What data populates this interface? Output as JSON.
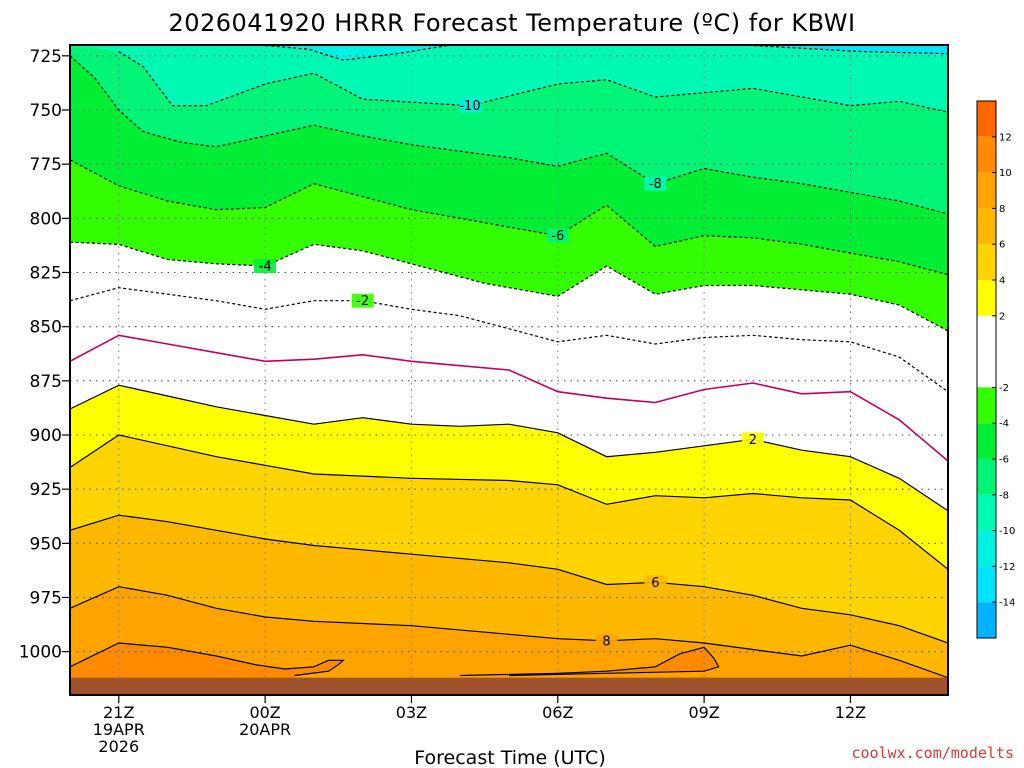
{
  "chart_data": {
    "type": "heatmap",
    "title": "2026041920 HRRR Forecast Temperature (ºC) for KBWI",
    "xlabel": "Forecast Time (UTC)",
    "ylabel": "",
    "credit": "coolwx.com/modelts",
    "x_range_hours": [
      -1,
      17
    ],
    "y_range_hpa": [
      720,
      1020
    ],
    "x_ticks": [
      {
        "hour": 0,
        "lines": [
          "21Z",
          "19APR",
          "2026"
        ]
      },
      {
        "hour": 3,
        "lines": [
          "00Z",
          "20APR"
        ]
      },
      {
        "hour": 6,
        "lines": [
          "03Z"
        ]
      },
      {
        "hour": 9,
        "lines": [
          "06Z"
        ]
      },
      {
        "hour": 12,
        "lines": [
          "09Z"
        ]
      },
      {
        "hour": 15,
        "lines": [
          "12Z"
        ]
      }
    ],
    "y_ticks": [
      725,
      750,
      775,
      800,
      825,
      850,
      875,
      900,
      925,
      950,
      975,
      1000
    ],
    "colorbar_ticks": [
      12,
      10,
      8,
      6,
      4,
      2,
      -2,
      -4,
      -6,
      -8,
      -10,
      -12,
      -14
    ],
    "colorbar_bands": [
      {
        "from": 12,
        "to": 14,
        "color": "#ff6600"
      },
      {
        "from": 10,
        "to": 12,
        "color": "#ff8a00"
      },
      {
        "from": 8,
        "to": 10,
        "color": "#ffa300"
      },
      {
        "from": 6,
        "to": 8,
        "color": "#ffb800"
      },
      {
        "from": 4,
        "to": 6,
        "color": "#ffd400"
      },
      {
        "from": 2,
        "to": 4,
        "color": "#ffff00"
      },
      {
        "from": -2,
        "to": 2,
        "color": "#ffffff"
      },
      {
        "from": -4,
        "to": -2,
        "color": "#33ff00"
      },
      {
        "from": -6,
        "to": -4,
        "color": "#00ee33"
      },
      {
        "from": -8,
        "to": -6,
        "color": "#00f577"
      },
      {
        "from": -10,
        "to": -8,
        "color": "#00fab4"
      },
      {
        "from": -12,
        "to": -10,
        "color": "#00f0e1"
      },
      {
        "from": -14,
        "to": -12,
        "color": "#00e4ff"
      },
      {
        "from": -16,
        "to": -14,
        "color": "#00b4ff"
      }
    ],
    "ground_color": "#a0522d",
    "surface_pressure_hpa": 1012,
    "series": [
      {
        "name": "-12 isotherm",
        "level": -12,
        "style": "dashed",
        "color": "#000000",
        "label": "",
        "points": [
          [
            2.9,
            720
          ],
          [
            3.9,
            722
          ],
          [
            4.6,
            727
          ],
          [
            5.7,
            724
          ],
          [
            6.8,
            720
          ]
        ]
      },
      {
        "name": "-14 isotherm",
        "level": -14,
        "style": "dashed",
        "color": "#000000",
        "label": "",
        "points": [
          [
            12.8,
            720
          ],
          [
            15.2,
            723
          ],
          [
            17,
            724
          ]
        ]
      },
      {
        "name": "-10 isotherm",
        "level": -10,
        "style": "dashed",
        "color": "#000000",
        "label": "-10",
        "label_at": [
          7.2,
          748
        ],
        "points": [
          [
            0,
            723
          ],
          [
            0.5,
            730
          ],
          [
            1.1,
            748
          ],
          [
            1.8,
            748
          ],
          [
            3,
            738
          ],
          [
            4,
            733
          ],
          [
            5,
            745
          ],
          [
            7.2,
            748
          ],
          [
            9,
            738
          ],
          [
            10,
            736
          ],
          [
            11,
            744
          ],
          [
            12,
            742
          ],
          [
            13,
            740
          ],
          [
            14,
            744
          ],
          [
            15,
            748
          ],
          [
            16,
            746
          ],
          [
            17,
            751
          ]
        ]
      },
      {
        "name": "-8 isotherm",
        "level": -8,
        "style": "dashed",
        "color": "#000000",
        "label": "-8",
        "label_at": [
          11,
          784
        ],
        "points": [
          [
            -1,
            725
          ],
          [
            -0.5,
            735
          ],
          [
            0,
            750
          ],
          [
            0.5,
            760
          ],
          [
            1.3,
            765
          ],
          [
            2,
            767
          ],
          [
            3,
            762
          ],
          [
            4,
            757
          ],
          [
            5,
            762
          ],
          [
            6,
            766
          ],
          [
            8,
            772
          ],
          [
            9,
            776
          ],
          [
            10,
            770
          ],
          [
            11,
            784
          ],
          [
            12,
            777
          ],
          [
            13,
            781
          ],
          [
            14,
            784
          ],
          [
            15,
            788
          ],
          [
            16,
            792
          ],
          [
            17,
            798
          ]
        ]
      },
      {
        "name": "-6 isotherm",
        "level": -6,
        "style": "dashed",
        "color": "#000000",
        "label": "-6",
        "label_at": [
          9,
          808
        ],
        "points": [
          [
            -1,
            773
          ],
          [
            0,
            785
          ],
          [
            1,
            792
          ],
          [
            2,
            796
          ],
          [
            3,
            795
          ],
          [
            4,
            784
          ],
          [
            5,
            790
          ],
          [
            6,
            796
          ],
          [
            7.5,
            802
          ],
          [
            9,
            808
          ],
          [
            10,
            794
          ],
          [
            11,
            813
          ],
          [
            12,
            808
          ],
          [
            13,
            809
          ],
          [
            14,
            812
          ],
          [
            15,
            816
          ],
          [
            16,
            820
          ],
          [
            17,
            826
          ]
        ]
      },
      {
        "name": "-4 isotherm",
        "level": -4,
        "style": "dashed",
        "color": "#000000",
        "label": "-4",
        "label_at": [
          3,
          822
        ],
        "points": [
          [
            -1,
            811
          ],
          [
            0,
            812
          ],
          [
            1,
            819
          ],
          [
            2,
            821
          ],
          [
            3,
            822
          ],
          [
            4,
            812
          ],
          [
            5,
            815
          ],
          [
            6,
            821
          ],
          [
            7.5,
            830
          ],
          [
            9,
            836
          ],
          [
            10,
            822
          ],
          [
            11,
            835
          ],
          [
            12,
            831
          ],
          [
            13,
            831
          ],
          [
            14,
            833
          ],
          [
            15,
            835
          ],
          [
            16,
            840
          ],
          [
            17,
            852
          ]
        ]
      },
      {
        "name": "-2 isotherm",
        "level": -2,
        "style": "dashed",
        "color": "#000000",
        "label": "-2",
        "label_at": [
          5,
          838
        ],
        "points": [
          [
            -1,
            838
          ],
          [
            0,
            832
          ],
          [
            1,
            835
          ],
          [
            2,
            838
          ],
          [
            3,
            842
          ],
          [
            4,
            838
          ],
          [
            5,
            838
          ],
          [
            6,
            842
          ],
          [
            7,
            845
          ],
          [
            8,
            851
          ],
          [
            9,
            857
          ],
          [
            10,
            854
          ],
          [
            11,
            858
          ],
          [
            12,
            855
          ],
          [
            13,
            854
          ],
          [
            14,
            856
          ],
          [
            15,
            857
          ],
          [
            16,
            864
          ],
          [
            17,
            880
          ]
        ]
      },
      {
        "name": "0 isotherm",
        "level": 0,
        "style": "solid",
        "color": "#c00060",
        "label": "",
        "points": [
          [
            -1,
            866
          ],
          [
            0,
            854
          ],
          [
            1,
            858
          ],
          [
            2,
            862
          ],
          [
            3,
            866
          ],
          [
            4,
            865
          ],
          [
            5,
            863
          ],
          [
            6,
            866
          ],
          [
            7,
            868
          ],
          [
            8,
            870
          ],
          [
            9,
            880
          ],
          [
            10,
            883
          ],
          [
            11,
            885
          ],
          [
            12,
            879
          ],
          [
            13,
            876
          ],
          [
            14,
            881
          ],
          [
            15,
            880
          ],
          [
            16,
            893
          ],
          [
            17,
            912
          ]
        ]
      },
      {
        "name": "2 isotherm",
        "level": 2,
        "style": "solid",
        "color": "#000000",
        "label": "2",
        "label_at": [
          13,
          902
        ],
        "points": [
          [
            -1,
            888
          ],
          [
            0,
            877
          ],
          [
            1,
            882
          ],
          [
            2,
            887
          ],
          [
            3,
            891
          ],
          [
            4,
            895
          ],
          [
            5,
            892
          ],
          [
            6,
            895
          ],
          [
            7,
            896
          ],
          [
            8,
            895
          ],
          [
            9,
            899
          ],
          [
            10,
            910
          ],
          [
            11,
            908
          ],
          [
            12,
            905
          ],
          [
            13,
            902
          ],
          [
            14,
            907
          ],
          [
            15,
            910
          ],
          [
            16,
            920
          ],
          [
            17,
            935
          ]
        ]
      },
      {
        "name": "4 isotherm",
        "level": 4,
        "style": "solid",
        "color": "#000000",
        "label": "",
        "points": [
          [
            -1,
            915
          ],
          [
            0,
            900
          ],
          [
            1,
            905
          ],
          [
            2,
            910
          ],
          [
            3,
            914
          ],
          [
            4,
            918
          ],
          [
            6,
            920
          ],
          [
            8,
            921
          ],
          [
            9,
            923
          ],
          [
            10,
            932
          ],
          [
            11,
            928
          ],
          [
            12,
            929
          ],
          [
            13,
            927
          ],
          [
            14,
            929
          ],
          [
            15,
            930
          ],
          [
            16,
            944
          ],
          [
            17,
            962
          ]
        ]
      },
      {
        "name": "6 isotherm",
        "level": 6,
        "style": "solid",
        "color": "#000000",
        "label": "6",
        "label_at": [
          11,
          968
        ],
        "points": [
          [
            -1,
            944
          ],
          [
            0,
            937
          ],
          [
            1,
            940
          ],
          [
            2,
            944
          ],
          [
            3,
            948
          ],
          [
            4,
            951
          ],
          [
            6,
            955
          ],
          [
            8,
            959
          ],
          [
            9,
            962
          ],
          [
            10,
            969
          ],
          [
            11,
            968
          ],
          [
            12,
            970
          ],
          [
            13,
            974
          ],
          [
            14,
            980
          ],
          [
            15,
            983
          ],
          [
            16,
            988
          ],
          [
            17,
            996
          ]
        ]
      },
      {
        "name": "8 isotherm",
        "level": 8,
        "style": "solid",
        "color": "#000000",
        "label": "8",
        "label_at": [
          10,
          995
        ],
        "points": [
          [
            -1,
            980
          ],
          [
            0,
            970
          ],
          [
            1,
            974
          ],
          [
            2,
            980
          ],
          [
            3,
            984
          ],
          [
            4,
            986
          ],
          [
            6,
            988
          ],
          [
            8,
            992
          ],
          [
            9,
            994
          ],
          [
            10,
            995
          ],
          [
            11,
            994
          ],
          [
            12,
            996
          ],
          [
            13,
            999
          ],
          [
            14,
            1002
          ],
          [
            15,
            997
          ],
          [
            16,
            1004
          ],
          [
            17,
            1012
          ]
        ]
      },
      {
        "name": "10 isotherm",
        "level": 10,
        "style": "solid",
        "color": "#000000",
        "label": "",
        "points": [
          [
            -1,
            1007
          ],
          [
            0,
            996
          ],
          [
            1,
            998
          ],
          [
            2,
            1002
          ],
          [
            2.8,
            1006
          ],
          [
            3.4,
            1008
          ],
          [
            4,
            1007
          ],
          [
            4.3,
            1004
          ],
          [
            4.6,
            1004
          ],
          [
            4.5,
            1006
          ],
          [
            4.3,
            1009
          ],
          [
            3.6,
            1011
          ]
        ]
      },
      {
        "name": "10 isotherm east",
        "level": 10,
        "style": "solid",
        "color": "#000000",
        "label": "",
        "points": [
          [
            7,
            1011
          ],
          [
            9,
            1010
          ],
          [
            10,
            1009
          ],
          [
            11,
            1007
          ],
          [
            11.5,
            1001
          ],
          [
            12,
            998
          ],
          [
            12.2,
            1003
          ],
          [
            12.3,
            1007
          ],
          [
            12,
            1009
          ],
          [
            10,
            1010
          ],
          [
            8,
            1011
          ]
        ]
      }
    ]
  }
}
